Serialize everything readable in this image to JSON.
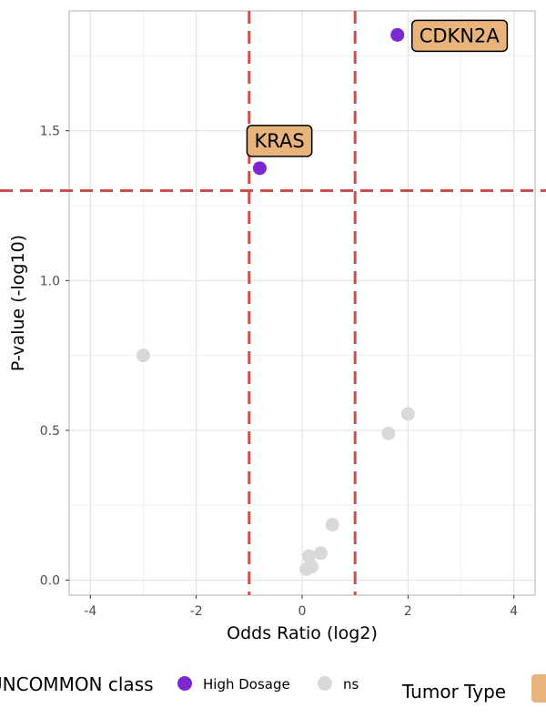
{
  "chart_data": {
    "type": "scatter",
    "xlabel": "Odds Ratio (log2)",
    "ylabel": "P-value (-log10)",
    "xlim": [
      -4.4,
      4.4
    ],
    "ylim": [
      -0.05,
      1.9
    ],
    "x_ticks": [
      -4,
      -2,
      0,
      2,
      4
    ],
    "x_tick_labels": [
      "-4",
      "-2",
      "0",
      "2",
      "4"
    ],
    "y_ticks": [
      0.0,
      0.5,
      1.0,
      1.5
    ],
    "y_tick_labels": [
      "0.0",
      "0.5",
      "1.0",
      "1.5"
    ],
    "grid": true,
    "thresholds": {
      "x": [
        -1,
        1
      ],
      "y": [
        1.3
      ],
      "color": "#c8504f",
      "style": "dashed"
    },
    "colors": {
      "High Dosage": "#7b28d0",
      "ns": "#d9d9d9"
    },
    "series": [
      {
        "name": "High Dosage",
        "points": [
          {
            "x": 1.8,
            "y": 1.82,
            "label": "CDKN2A"
          },
          {
            "x": -0.8,
            "y": 1.375,
            "label": "KRAS"
          }
        ]
      },
      {
        "name": "ns",
        "points": [
          {
            "x": -3.0,
            "y": 0.75
          },
          {
            "x": 2.0,
            "y": 0.555
          },
          {
            "x": 1.63,
            "y": 0.49
          },
          {
            "x": 0.57,
            "y": 0.185
          },
          {
            "x": 0.35,
            "y": 0.09
          },
          {
            "x": 0.13,
            "y": 0.08
          },
          {
            "x": 0.18,
            "y": 0.045
          },
          {
            "x": 0.08,
            "y": 0.037
          }
        ]
      }
    ],
    "label_fill": "#e8b47b",
    "legend": {
      "position": "bottom",
      "class_title": "UNCOMMON class",
      "class_items": [
        "High Dosage",
        "ns"
      ],
      "tumor_title": "Tumor Type"
    }
  }
}
